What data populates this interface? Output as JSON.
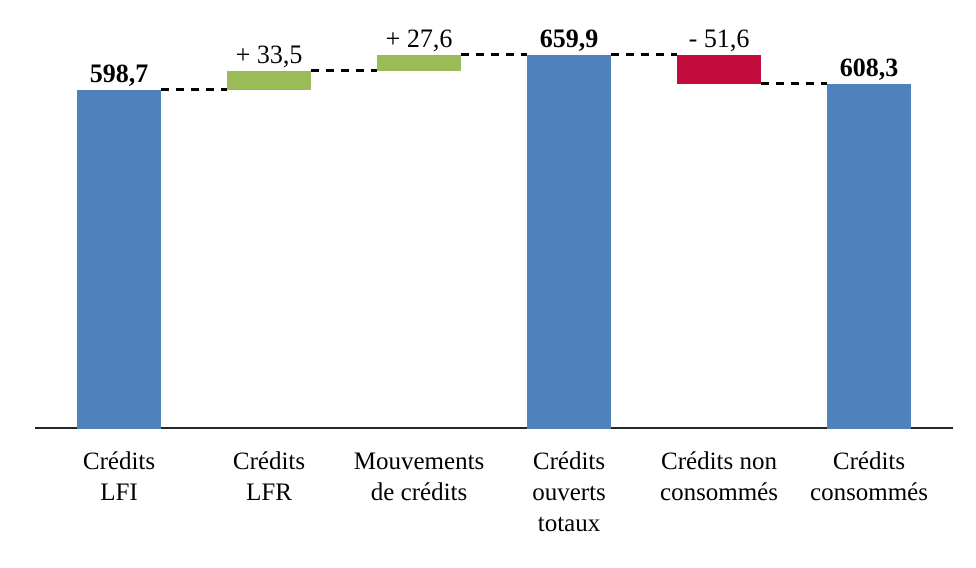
{
  "chart_data": {
    "type": "waterfall",
    "title": "",
    "legend": "none",
    "grid": "off",
    "y_axis": "hidden",
    "baseline_value": 0,
    "y_max_rendered": 659.9,
    "connector_style": "dashed",
    "categories": [
      "Crédits LFI",
      "Crédits LFR",
      "Mouvements de crédits",
      "Crédits ouverts totaux",
      "Crédits non consommés",
      "Crédits consommés"
    ],
    "columns": [
      {
        "id": "credits-lfi",
        "label_lines": [
          "Crédits",
          "LFI"
        ],
        "kind": "total",
        "value": 598.7,
        "value_label": "598,7",
        "bold_value": true
      },
      {
        "id": "credits-lfr",
        "label_lines": [
          "Crédits",
          "LFR"
        ],
        "kind": "increase",
        "value": 33.5,
        "value_label": "+ 33,5",
        "bold_value": false
      },
      {
        "id": "mouvements-de-credits",
        "label_lines": [
          "Mouvements",
          "de crédits"
        ],
        "kind": "increase",
        "value": 27.6,
        "value_label": "+ 27,6",
        "bold_value": false
      },
      {
        "id": "credits-ouverts-totaux",
        "label_lines": [
          "Crédits",
          "ouverts",
          "totaux"
        ],
        "kind": "total",
        "value": 659.9,
        "value_label": "659,9",
        "bold_value": true
      },
      {
        "id": "credits-non-consommes",
        "label_lines": [
          "Crédits non",
          "consommés"
        ],
        "kind": "decrease",
        "value": -51.6,
        "value_label": "- 51,6",
        "bold_value": false
      },
      {
        "id": "credits-consommes",
        "label_lines": [
          "Crédits",
          "consommés"
        ],
        "kind": "total",
        "value": 608.3,
        "value_label": "608,3",
        "bold_value": true
      }
    ],
    "colors": {
      "total_bar": "#4f81bd",
      "increase_bar": "#9bbb59",
      "decrease_bar": "#c30b3e",
      "axis": "#262626",
      "connector": "#000000",
      "text": "#000000"
    }
  }
}
